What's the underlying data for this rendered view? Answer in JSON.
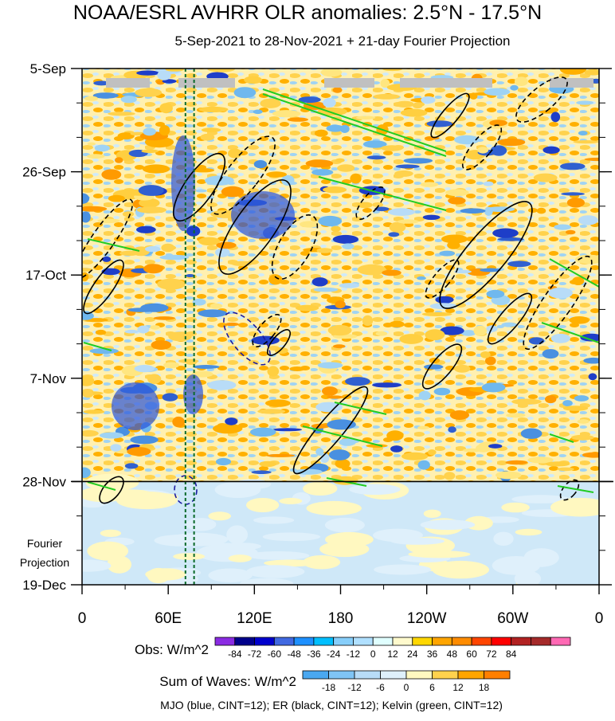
{
  "chart_data": {
    "type": "heatmap",
    "title": "NOAA/ESRL AVHRR OLR anomalies: 2.5°N - 17.5°N",
    "subtitle": "5-Sep-2021 to 28-Nov-2021 + 21-day Fourier Projection",
    "x_tick_labels": [
      "0",
      "60E",
      "120E",
      "180",
      "120W",
      "60W",
      "0"
    ],
    "x_ticks_deg": [
      0,
      60,
      120,
      180,
      240,
      300,
      360
    ],
    "xlim_deg": [
      0,
      360
    ],
    "y_tick_labels": [
      "5-Sep",
      "26-Sep",
      "17-Oct",
      "7-Nov",
      "28-Nov",
      "19-Dec"
    ],
    "y_ticks_day": [
      0,
      21,
      42,
      63,
      84,
      105
    ],
    "ylim_day": [
      0,
      105
    ],
    "obs_end_day": 84,
    "projection_label_lines": [
      "Fourier",
      "Projection"
    ],
    "reference_lines_deg": [
      72,
      78
    ],
    "obs_legend": {
      "label": "Obs: W/m^2",
      "levels": [
        "-84",
        "-72",
        "-60",
        "-48",
        "-36",
        "-24",
        "-12",
        "0",
        "12",
        "24",
        "36",
        "48",
        "60",
        "72",
        "84"
      ],
      "colors": [
        "#8a2be2",
        "#00008b",
        "#0000cd",
        "#4169e1",
        "#1e90ff",
        "#00bfff",
        "#87cefa",
        "#b0e0ff",
        "#e0ffff",
        "#fffacd",
        "#ffd700",
        "#ffa500",
        "#ff8c00",
        "#ff4500",
        "#ff0000",
        "#b22222",
        "#a52a2a",
        "#ff69b4"
      ]
    },
    "waves_legend": {
      "label": "Sum of Waves: W/m^2",
      "levels": [
        "-18",
        "-12",
        "-6",
        "0",
        "6",
        "12",
        "18"
      ],
      "colors": [
        "#4aa8f0",
        "#7fc4f5",
        "#b8dcf7",
        "#dff0fb",
        "#fff8c0",
        "#ffd24d",
        "#ffa500",
        "#ff7f00"
      ]
    },
    "footer": "MJO (blue, CINT=12); ER (black, CINT=12); Kelvin (green, CINT=12)",
    "contour_series": [
      {
        "name": "ER",
        "color": "#000000",
        "cint": 12
      },
      {
        "name": "MJO",
        "color": "#1a1aa0",
        "cint": 12
      },
      {
        "name": "Kelvin",
        "color": "#22cc22",
        "cint": 12
      }
    ]
  }
}
